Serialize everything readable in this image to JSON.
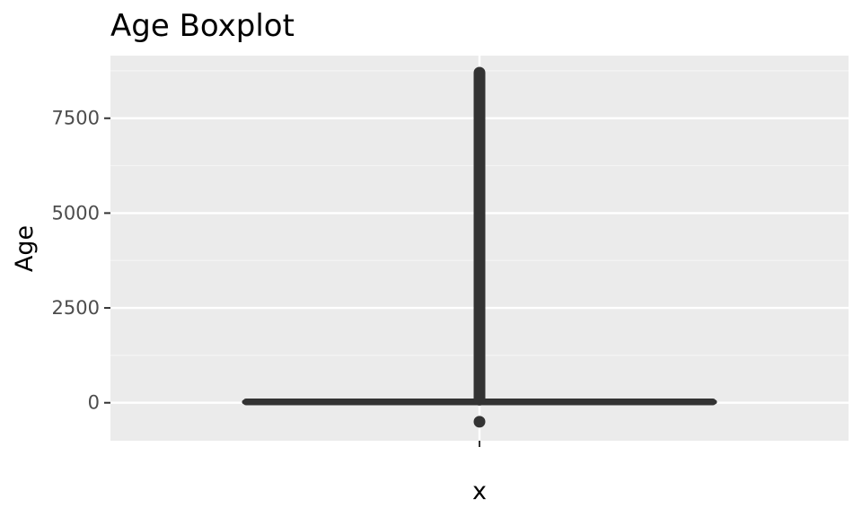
{
  "chart_data": {
    "type": "boxplot",
    "title": "Age Boxplot",
    "xlabel": "x",
    "ylabel": "Age",
    "categories": [
      ""
    ],
    "y_ticks": [
      0,
      2500,
      5000,
      7500
    ],
    "y_tick_labels": [
      "0",
      "2500",
      "5000",
      "7500"
    ],
    "ylim": [
      -1000,
      9150
    ],
    "grid": true,
    "boxes": [
      {
        "category": "",
        "min": 0,
        "q1": 5,
        "median": 20,
        "q3": 40,
        "max": 80
      }
    ],
    "outliers": {
      "low": [
        -500
      ],
      "high_range": [
        80,
        8700
      ]
    },
    "colors": {
      "panel_background": "#ebebeb",
      "grid_major": "#ffffff",
      "grid_minor": "#f4f4f4",
      "box_line": "#333333",
      "tick_text": "#4d4d4d",
      "title_text": "#000000"
    }
  }
}
